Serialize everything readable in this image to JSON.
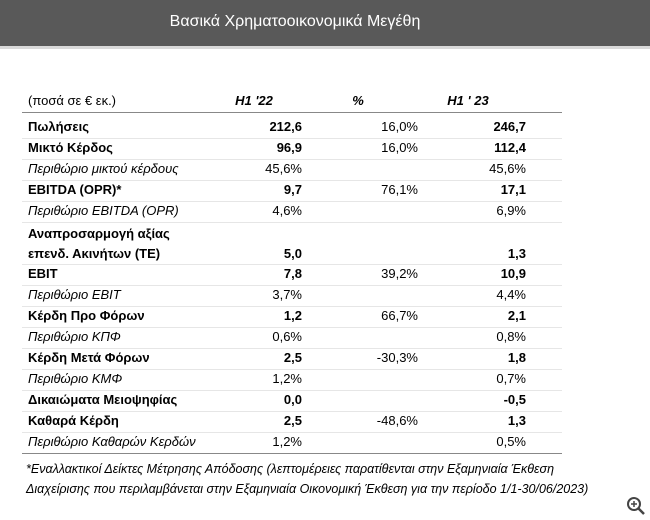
{
  "header": {
    "title": "Βασικά Χρηματοοικονομικά Μεγέθη"
  },
  "table": {
    "columns": [
      "(ποσά σε € εκ.)",
      "H1 '22",
      "%",
      "H1 ' 23"
    ],
    "rows": [
      {
        "label": "Πωλήσεις",
        "h1_22": "212,6",
        "pct": "16,0%",
        "h1_23": "246,7",
        "style": "bold"
      },
      {
        "label": "Μικτό Κέρδος",
        "h1_22": "96,9",
        "pct": "16,0%",
        "h1_23": "112,4",
        "style": "bold"
      },
      {
        "label": "Περιθώριο μικτού κέρδους",
        "h1_22": "45,6%",
        "pct": null,
        "h1_23": "45,6%",
        "style": "italic"
      },
      {
        "label": "EBITDA (OPR)*",
        "h1_22": "9,7",
        "pct": "76,1%",
        "h1_23": "17,1",
        "style": "bold"
      },
      {
        "label": "Περιθώριο EBITDA (OPR)",
        "h1_22": "4,6%",
        "pct": null,
        "h1_23": "6,9%",
        "style": "italic"
      },
      {
        "label": "Αναπροσαρμογή αξίας επενδ. Ακινήτων (ΤΕ)",
        "h1_22": "5,0",
        "pct": null,
        "h1_23": "1,3",
        "style": "bold"
      },
      {
        "label": "EBIT",
        "h1_22": "7,8",
        "pct": "39,2%",
        "h1_23": "10,9",
        "style": "bold"
      },
      {
        "label": "Περιθώριο EBIT",
        "h1_22": "3,7%",
        "pct": null,
        "h1_23": "4,4%",
        "style": "italic"
      },
      {
        "label": "Κέρδη Προ Φόρων",
        "h1_22": "1,2",
        "pct": "66,7%",
        "h1_23": "2,1",
        "style": "bold"
      },
      {
        "label": "Περιθώριο ΚΠΦ",
        "h1_22": "0,6%",
        "pct": null,
        "h1_23": "0,8%",
        "style": "italic"
      },
      {
        "label": "Κέρδη Μετά Φόρων",
        "h1_22": "2,5",
        "pct": "-30,3%",
        "h1_23": "1,8",
        "style": "bold"
      },
      {
        "label": "Περιθώριο ΚΜΦ",
        "h1_22": "1,2%",
        "pct": null,
        "h1_23": "0,7%",
        "style": "italic"
      },
      {
        "label": "Δικαιώματα Μειοψηφίας",
        "h1_22": "0,0",
        "pct": null,
        "h1_23": "-0,5",
        "style": "bold"
      },
      {
        "label": "Καθαρά Κέρδη",
        "h1_22": "2,5",
        "pct": "-48,6%",
        "h1_23": "1,3",
        "style": "bold"
      },
      {
        "label": "Περιθώριο Καθαρών Κερδών",
        "h1_22": "1,2%",
        "pct": null,
        "h1_23": "0,5%",
        "style": "italic"
      }
    ]
  },
  "footnote": [
    "*Εναλλακτικοί Δείκτες Μέτρησης Απόδοσης (λεπτομέρειες παρατίθενται στην Εξαμηνιαία Έκθεση",
    "Διαχείρισης που περιλαμβάνεται στην Εξαμηνιαία Οικονομική Έκθεση για την περίοδο 1/1-30/06/2023)"
  ]
}
